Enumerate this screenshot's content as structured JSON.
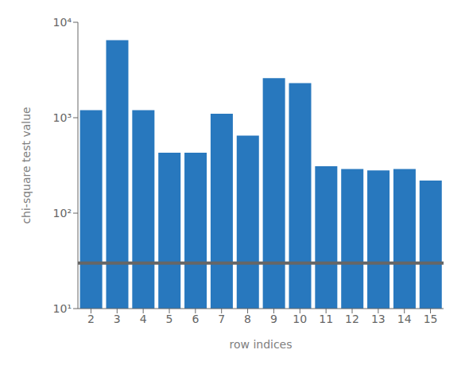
{
  "chart_data": {
    "type": "bar",
    "xlabel": "row indices",
    "ylabel": "chi-square test value",
    "categories": [
      "2",
      "3",
      "4",
      "5",
      "6",
      "7",
      "8",
      "9",
      "10",
      "11",
      "12",
      "13",
      "14",
      "15"
    ],
    "values": [
      1200,
      6500,
      1200,
      430,
      430,
      1100,
      650,
      2600,
      2300,
      310,
      290,
      280,
      290,
      220
    ],
    "color": "#2878BE",
    "log": "y",
    "ylim": [
      10,
      10000
    ],
    "yticks": [
      {
        "value": 10,
        "label": "10¹"
      },
      {
        "value": 100,
        "label": "10²"
      },
      {
        "value": 1000,
        "label": "10³"
      },
      {
        "value": 10000,
        "label": "10⁴"
      }
    ],
    "reference_line": {
      "value": 30,
      "color": "#666666"
    },
    "grid": false
  }
}
